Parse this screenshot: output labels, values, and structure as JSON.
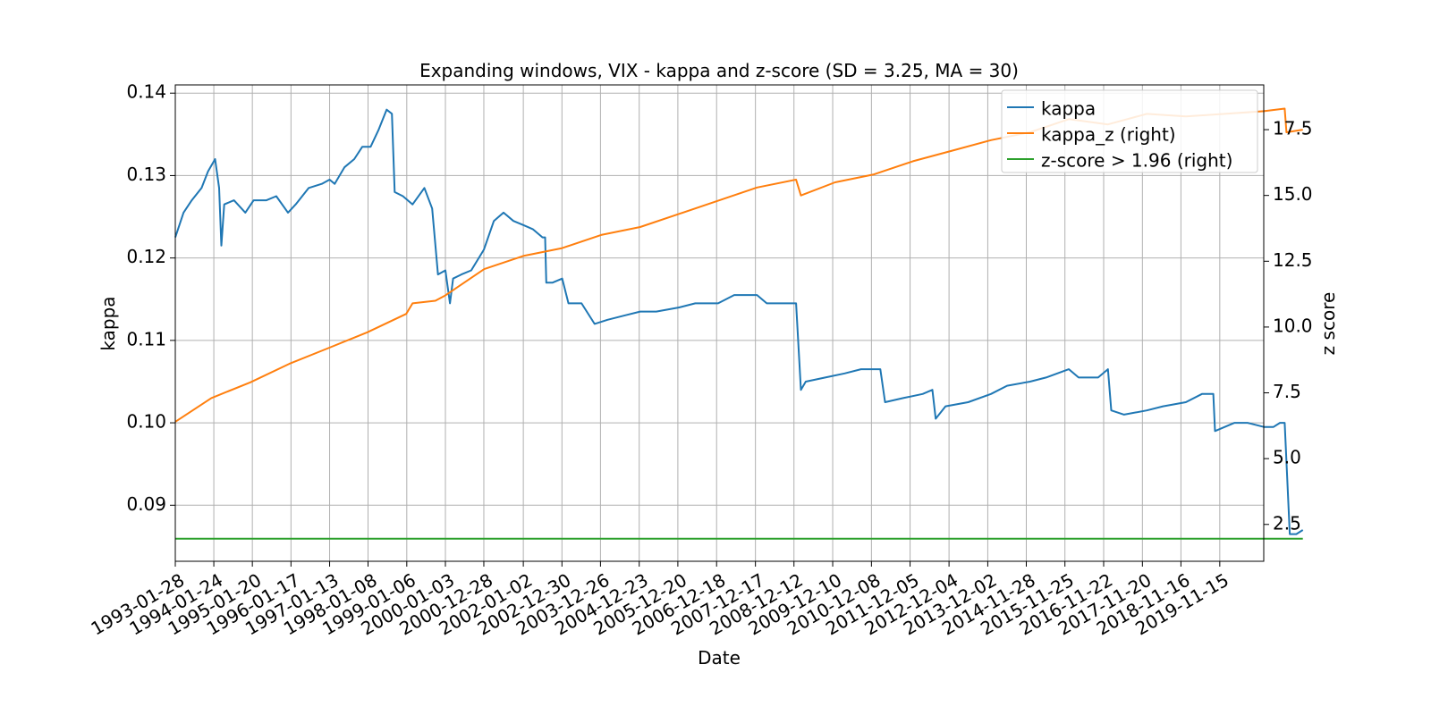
{
  "chart_data": {
    "type": "line",
    "title": "Expanding windows, VIX - kappa and z-score (SD = 3.25, MA = 30)",
    "xlabel": "Date",
    "ylabel_left": "kappa",
    "ylabel_right": "z score",
    "xlim": [
      "1993-01-28",
      "2020-12-31"
    ],
    "ylim_left": [
      0.0832,
      0.141
    ],
    "ylim_right": [
      1.1,
      19.2
    ],
    "grid": true,
    "legend_position": "top-right",
    "x_ticks": [
      "1993-01-28",
      "1994-01-24",
      "1995-01-20",
      "1996-01-17",
      "1997-01-13",
      "1998-01-08",
      "1999-01-06",
      "2000-01-03",
      "2000-12-28",
      "2002-01-02",
      "2002-12-30",
      "2003-12-26",
      "2004-12-23",
      "2005-12-20",
      "2006-12-18",
      "2007-12-17",
      "2008-12-12",
      "2009-12-10",
      "2010-12-08",
      "2011-12-05",
      "2012-12-04",
      "2013-12-02",
      "2014-11-28",
      "2015-11-25",
      "2016-11-22",
      "2017-11-20",
      "2018-11-16",
      "2019-11-15"
    ],
    "y_ticks_left": [
      "0.09",
      "0.10",
      "0.11",
      "0.12",
      "0.13",
      "0.14"
    ],
    "y_ticks_right": [
      "2.5",
      "5.0",
      "7.5",
      "10.0",
      "12.5",
      "15.0",
      "17.5"
    ],
    "series": [
      {
        "name": "kappa",
        "axis": "left",
        "color": "#1f77b4",
        "points": [
          [
            "1993-01-28",
            0.1225
          ],
          [
            "1993-04-15",
            0.1255
          ],
          [
            "1993-07-01",
            0.127
          ],
          [
            "1993-10-01",
            0.1285
          ],
          [
            "1993-12-01",
            0.1305
          ],
          [
            "1994-02-05",
            0.132
          ],
          [
            "1994-03-15",
            0.1285
          ],
          [
            "1994-04-05",
            0.1215
          ],
          [
            "1994-05-01",
            0.1265
          ],
          [
            "1994-08-01",
            0.127
          ],
          [
            "1994-11-15",
            0.1255
          ],
          [
            "1995-02-01",
            0.127
          ],
          [
            "1995-06-01",
            0.127
          ],
          [
            "1995-09-01",
            0.1275
          ],
          [
            "1995-12-20",
            0.1255
          ],
          [
            "1996-03-01",
            0.1265
          ],
          [
            "1996-07-01",
            0.1285
          ],
          [
            "1996-11-01",
            0.129
          ],
          [
            "1997-01-13",
            0.1295
          ],
          [
            "1997-03-01",
            0.129
          ],
          [
            "1997-06-01",
            0.131
          ],
          [
            "1997-09-01",
            0.132
          ],
          [
            "1997-11-15",
            0.1335
          ],
          [
            "1998-02-01",
            0.1335
          ],
          [
            "1998-04-15",
            0.1355
          ],
          [
            "1998-07-01",
            0.138
          ],
          [
            "1998-08-20",
            0.1375
          ],
          [
            "1998-09-15",
            0.128
          ],
          [
            "1998-12-01",
            0.1275
          ],
          [
            "1999-03-01",
            0.1265
          ],
          [
            "1999-06-20",
            0.1285
          ],
          [
            "1999-09-01",
            0.126
          ],
          [
            "1999-10-25",
            0.118
          ],
          [
            "2000-01-03",
            0.1185
          ],
          [
            "2000-02-15",
            0.1145
          ],
          [
            "2000-03-15",
            0.1175
          ],
          [
            "2000-06-01",
            0.118
          ],
          [
            "2000-09-01",
            0.1185
          ],
          [
            "2000-12-28",
            0.121
          ],
          [
            "2001-04-01",
            0.1245
          ],
          [
            "2001-07-01",
            0.1255
          ],
          [
            "2001-10-01",
            0.1245
          ],
          [
            "2002-01-02",
            0.124
          ],
          [
            "2002-04-01",
            0.1235
          ],
          [
            "2002-07-01",
            0.1225
          ],
          [
            "2002-07-25",
            0.1225
          ],
          [
            "2002-08-05",
            0.117
          ],
          [
            "2002-10-01",
            0.117
          ],
          [
            "2003-01-01",
            0.1175
          ],
          [
            "2003-03-01",
            0.1145
          ],
          [
            "2003-07-01",
            0.1145
          ],
          [
            "2003-11-01",
            0.112
          ],
          [
            "2004-03-01",
            0.1125
          ],
          [
            "2004-08-01",
            0.113
          ],
          [
            "2005-01-01",
            0.1135
          ],
          [
            "2005-06-01",
            0.1135
          ],
          [
            "2006-01-01",
            0.114
          ],
          [
            "2006-06-01",
            0.1145
          ],
          [
            "2007-01-01",
            0.1145
          ],
          [
            "2007-06-01",
            0.1155
          ],
          [
            "2008-01-01",
            0.1155
          ],
          [
            "2008-04-01",
            0.1145
          ],
          [
            "2008-08-01",
            0.1145
          ],
          [
            "2008-11-01",
            0.1145
          ],
          [
            "2009-01-01",
            0.1145
          ],
          [
            "2009-02-15",
            0.104
          ],
          [
            "2009-04-01",
            0.105
          ],
          [
            "2009-10-01",
            0.1055
          ],
          [
            "2010-04-01",
            0.106
          ],
          [
            "2010-09-01",
            0.1065
          ],
          [
            "2011-03-01",
            0.1065
          ],
          [
            "2011-04-15",
            0.1025
          ],
          [
            "2011-10-01",
            0.103
          ],
          [
            "2012-04-01",
            0.1035
          ],
          [
            "2012-07-01",
            0.104
          ],
          [
            "2012-08-01",
            0.1005
          ],
          [
            "2012-11-01",
            0.102
          ],
          [
            "2013-06-01",
            0.1025
          ],
          [
            "2014-01-01",
            0.1035
          ],
          [
            "2014-06-01",
            0.1045
          ],
          [
            "2015-01-01",
            0.105
          ],
          [
            "2015-06-01",
            0.1055
          ],
          [
            "2016-01-01",
            0.1065
          ],
          [
            "2016-04-01",
            0.1055
          ],
          [
            "2016-10-01",
            0.1055
          ],
          [
            "2017-01-01",
            0.1065
          ],
          [
            "2017-02-01",
            0.1015
          ],
          [
            "2017-06-01",
            0.101
          ],
          [
            "2018-01-01",
            0.1015
          ],
          [
            "2018-06-01",
            0.102
          ],
          [
            "2019-01-01",
            0.1025
          ],
          [
            "2019-06-01",
            0.1035
          ],
          [
            "2019-09-15",
            0.1035
          ],
          [
            "2019-10-01",
            0.099
          ],
          [
            "2020-04-01",
            0.1
          ],
          [
            "2020-08-01",
            0.1
          ],
          [
            "2021-01-01",
            0.0995
          ],
          [
            "2021-04-01",
            0.0995
          ],
          [
            "2021-06-01",
            0.1
          ],
          [
            "2021-07-15",
            0.1
          ],
          [
            "2021-09-01",
            0.0865
          ],
          [
            "2021-11-01",
            0.0865
          ],
          [
            "2022-01-01",
            0.087
          ]
        ]
      },
      {
        "name": "kappa_z (right)",
        "axis": "right",
        "color": "#ff7f0e",
        "points": [
          [
            "1993-01-28",
            6.4
          ],
          [
            "1994-01-01",
            7.3
          ],
          [
            "1995-01-01",
            7.9
          ],
          [
            "1996-01-01",
            8.6
          ],
          [
            "1997-01-01",
            9.2
          ],
          [
            "1998-01-01",
            9.8
          ],
          [
            "1999-01-01",
            10.5
          ],
          [
            "1999-03-01",
            10.9
          ],
          [
            "1999-10-01",
            11.0
          ],
          [
            "2000-01-01",
            11.2
          ],
          [
            "2001-01-01",
            12.2
          ],
          [
            "2002-01-01",
            12.7
          ],
          [
            "2003-01-01",
            13.0
          ],
          [
            "2004-01-01",
            13.5
          ],
          [
            "2005-01-01",
            13.8
          ],
          [
            "2006-01-01",
            14.3
          ],
          [
            "2007-01-01",
            14.8
          ],
          [
            "2008-01-01",
            15.3
          ],
          [
            "2009-01-01",
            15.6
          ],
          [
            "2009-02-15",
            15.0
          ],
          [
            "2010-01-01",
            15.5
          ],
          [
            "2011-01-01",
            15.8
          ],
          [
            "2012-01-01",
            16.3
          ],
          [
            "2013-01-01",
            16.7
          ],
          [
            "2014-01-01",
            17.1
          ],
          [
            "2015-01-01",
            17.4
          ],
          [
            "2016-01-01",
            17.9
          ],
          [
            "2017-01-01",
            17.7
          ],
          [
            "2018-01-01",
            18.1
          ],
          [
            "2019-01-01",
            18.0
          ],
          [
            "2020-01-01",
            18.1
          ],
          [
            "2021-01-01",
            18.2
          ],
          [
            "2021-07-15",
            18.3
          ],
          [
            "2021-08-01",
            17.4
          ],
          [
            "2022-01-01",
            17.5
          ]
        ]
      },
      {
        "name": "z-score > 1.96 (right)",
        "axis": "right",
        "color": "#2ca02c",
        "points": [
          [
            "1993-01-28",
            1.96
          ],
          [
            "2022-01-01",
            1.96
          ]
        ]
      }
    ]
  }
}
